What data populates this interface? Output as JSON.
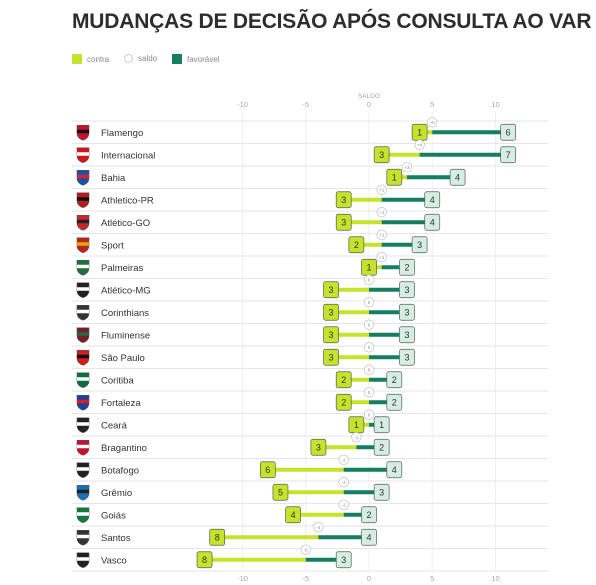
{
  "title": "MUDANÇAS DE DECISÃO APÓS CONSULTA AO VAR",
  "legend": {
    "contra": "contra",
    "saldo": "saldo",
    "favoravel": "favorável"
  },
  "colors": {
    "contra": "#c6e22b",
    "favoravel": "#137f5f",
    "saldo_border": "#bdbdbd",
    "row_line": "#e6e6e6",
    "grid": "#efefef",
    "text": "#333333",
    "axis_text": "#a8a8a8"
  },
  "chart_data": {
    "type": "dumbbell",
    "xlabel": "SALDO",
    "xlim": [
      -12.5,
      12.5
    ],
    "xticks": [
      -10,
      -5,
      0,
      5,
      10
    ],
    "tick_labels": [
      "-10",
      "-5",
      "0",
      "5",
      "10"
    ],
    "categories": [
      "Flamengo",
      "Internacional",
      "Bahia",
      "Athletico-PR",
      "Atlético-GO",
      "Sport",
      "Palmeiras",
      "Atlético-MG",
      "Corinthians",
      "Fluminense",
      "São Paulo",
      "Coritiba",
      "Fortaleza",
      "Ceará",
      "Bragantino",
      "Botafogo",
      "Grêmio",
      "Goiás",
      "Santos",
      "Vasco"
    ],
    "series": [
      {
        "name": "contra",
        "values": [
          1,
          3,
          1,
          3,
          3,
          2,
          1,
          3,
          3,
          3,
          3,
          2,
          2,
          1,
          3,
          6,
          5,
          4,
          8,
          8
        ]
      },
      {
        "name": "favorável",
        "values": [
          6,
          7,
          4,
          4,
          4,
          3,
          2,
          3,
          3,
          3,
          3,
          2,
          2,
          1,
          2,
          4,
          3,
          2,
          4,
          3
        ]
      },
      {
        "name": "saldo",
        "values": [
          5,
          4,
          3,
          1,
          1,
          1,
          1,
          0,
          0,
          0,
          0,
          0,
          0,
          0,
          -1,
          -2,
          -2,
          -2,
          -4,
          -5
        ]
      }
    ],
    "value_labels": {
      "contra": [
        "1",
        "3",
        "1",
        "3",
        "3",
        "2",
        "1",
        "3",
        "3",
        "3",
        "3",
        "2",
        "2",
        "1",
        "3",
        "6",
        "5",
        "4",
        "8",
        "8"
      ],
      "favoravel": [
        "6",
        "7",
        "4",
        "4",
        "4",
        "3",
        "2",
        "3",
        "3",
        "3",
        "3",
        "2",
        "2",
        "1",
        "2",
        "4",
        "3",
        "2",
        "4",
        "3"
      ],
      "saldo": [
        "+5",
        "+4",
        "+3",
        "+1",
        "+1",
        "+1",
        "+1",
        "0",
        "0",
        "0",
        "0",
        "0",
        "0",
        "0",
        "-1",
        "-2",
        "-2",
        "-2",
        "-4",
        "-5"
      ]
    },
    "team_icons": [
      "flamengo-crest",
      "internacional-crest",
      "bahia-crest",
      "athletico-pr-crest",
      "atletico-go-crest",
      "sport-crest",
      "palmeiras-crest",
      "atletico-mg-crest",
      "corinthians-crest",
      "fluminense-crest",
      "sao-paulo-crest",
      "coritiba-crest",
      "fortaleza-crest",
      "ceara-crest",
      "bragantino-crest",
      "botafogo-crest",
      "gremio-crest",
      "goias-crest",
      "santos-crest",
      "vasco-crest"
    ],
    "team_colors": [
      [
        "#c8102e",
        "#111111"
      ],
      [
        "#d5111a",
        "#ffffff"
      ],
      [
        "#1d4fa3",
        "#d8232a"
      ],
      [
        "#b71c1c",
        "#111111"
      ],
      [
        "#c62828",
        "#222222"
      ],
      [
        "#b8251b",
        "#e0a800"
      ],
      [
        "#1f6f3a",
        "#ffffff"
      ],
      [
        "#222222",
        "#ffffff"
      ],
      [
        "#333333",
        "#ffffff"
      ],
      [
        "#7a1c2c",
        "#1c6b3a"
      ],
      [
        "#d7191c",
        "#111111"
      ],
      [
        "#0f6e3f",
        "#ffffff"
      ],
      [
        "#1f3f99",
        "#d81f26"
      ],
      [
        "#222222",
        "#ffffff"
      ],
      [
        "#c8102e",
        "#ffffff"
      ],
      [
        "#222222",
        "#ffffff"
      ],
      [
        "#1a73b8",
        "#222222"
      ],
      [
        "#0f7a3a",
        "#ffffff"
      ],
      [
        "#333333",
        "#ffffff"
      ],
      [
        "#222222",
        "#ffffff"
      ]
    ]
  }
}
